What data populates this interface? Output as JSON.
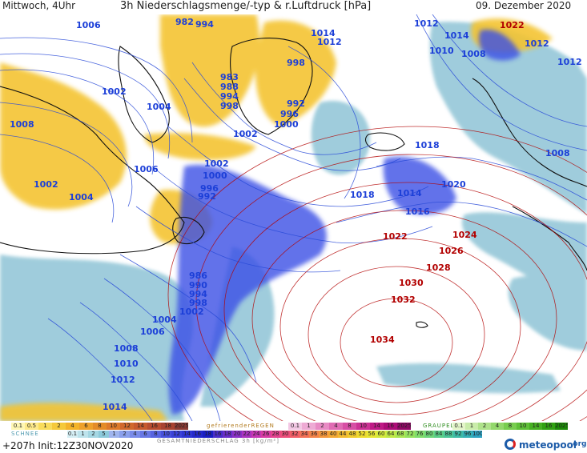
{
  "header": {
    "left": "Mittwoch, 4Uhr",
    "center": "3h Niederschlagsmenge/-typ & r.Luftdruck [hPa]",
    "right": "09. Dezember 2020"
  },
  "map": {
    "isobars_blue": [
      {
        "t": "1006"
      },
      {
        "t": "1012"
      },
      {
        "t": "1022"
      },
      {
        "t": "1018"
      },
      {
        "t": "1016"
      },
      {
        "t": "1012"
      },
      {
        "t": "982"
      },
      {
        "t": "994"
      },
      {
        "t": "1014"
      },
      {
        "t": "1012"
      },
      {
        "t": "1014"
      },
      {
        "t": "1010"
      },
      {
        "t": "1008"
      },
      {
        "t": "1012"
      },
      {
        "t": "998"
      },
      {
        "t": "983"
      },
      {
        "t": "988"
      },
      {
        "t": "994"
      },
      {
        "t": "998"
      },
      {
        "t": "992"
      },
      {
        "t": "996"
      },
      {
        "t": "1000"
      },
      {
        "t": "1002"
      },
      {
        "t": "1004"
      },
      {
        "t": "1008"
      },
      {
        "t": "1002"
      },
      {
        "t": "1018"
      },
      {
        "t": "1008"
      },
      {
        "t": "1006"
      },
      {
        "t": "1002"
      },
      {
        "t": "1000"
      },
      {
        "t": "996"
      },
      {
        "t": "992"
      },
      {
        "t": "1002"
      },
      {
        "t": "1004"
      },
      {
        "t": "1018"
      },
      {
        "t": "1014"
      },
      {
        "t": "1020"
      },
      {
        "t": "1016"
      },
      {
        "t": "986"
      },
      {
        "t": "990"
      },
      {
        "t": "994"
      },
      {
        "t": "998"
      },
      {
        "t": "1002"
      },
      {
        "t": "1004"
      },
      {
        "t": "1006"
      },
      {
        "t": "1008"
      },
      {
        "t": "1010"
      },
      {
        "t": "1012"
      },
      {
        "t": "1014"
      }
    ],
    "isobars_red": [
      {
        "t": "1022"
      },
      {
        "t": "1024"
      },
      {
        "t": "1026"
      },
      {
        "t": "1028"
      },
      {
        "t": "1030"
      },
      {
        "t": "1032"
      },
      {
        "t": "1034"
      }
    ],
    "colors": {
      "rain": "#f4c430",
      "snow": "#8fc4d6",
      "heavy_snow": "#3b50e6",
      "isobar_low": "#1c3fd8",
      "isobar_high": "#b20000",
      "land": "#ffffff",
      "coast": "#111111"
    }
  },
  "legend": {
    "rain_title": "REGEN",
    "rain_values": [
      "0.1",
      "0.5",
      "1",
      "2",
      "4",
      "6",
      "8",
      "10",
      "12",
      "14",
      "16",
      "18",
      "2025+"
    ],
    "rain_colors": [
      "#fff7b3",
      "#fde98a",
      "#f9dc5c",
      "#f5c93a",
      "#f3b32a",
      "#eea12c",
      "#e48c28",
      "#dd7a2a",
      "#d1692d",
      "#c65a2e",
      "#b74d30",
      "#a84331",
      "#8a3a33"
    ],
    "freezing_title": "gefrierenderREGEN",
    "freezing_values": [
      "0.1",
      "1",
      "2",
      "4",
      "8",
      "10",
      "14",
      "16",
      "2025+"
    ],
    "freezing_colors": [
      "#f3c8e4",
      "#eeaad4",
      "#e88bc4",
      "#e06cb4",
      "#d74ea4",
      "#cc3294",
      "#bf1a86",
      "#ad0c77",
      "#920766"
    ],
    "graupel_title": "GRAUPEL",
    "graupel_values": [
      "0.1",
      "1",
      "2",
      "4",
      "8",
      "10",
      "14",
      "16",
      "2025+"
    ],
    "graupel_colors": [
      "#e3f5c9",
      "#c9ecaa",
      "#aee28a",
      "#93d86c",
      "#78cd4f",
      "#5fc038",
      "#47b123",
      "#31a112",
      "#1d8c07"
    ],
    "snow_title": "SCHNEE",
    "snow_values": [
      "0.1",
      "1",
      "2",
      "5",
      "1",
      "2",
      "4",
      "6",
      "8",
      "10",
      "12",
      "14",
      "16",
      "18"
    ],
    "snow_colors": [
      "#d5eef4",
      "#bde3ec",
      "#a5d7e3",
      "#8dcadb",
      "#9fb4ee",
      "#8aa0ec",
      "#7a8ce9",
      "#6878e5",
      "#5764e1",
      "#4751dd",
      "#3a42d8",
      "#2e35d3",
      "#2428cc",
      "#1a1ec4"
    ],
    "total_title": "GESAMTNIEDERSCHLAG 3h [kg/m²]",
    "total_values": [
      "16",
      "18",
      "20",
      "22",
      "24",
      "26",
      "28",
      "30",
      "32",
      "34",
      "36",
      "38",
      "40",
      "44",
      "48",
      "52",
      "56",
      "60",
      "64",
      "68",
      "72",
      "76",
      "80",
      "84",
      "88",
      "92",
      "96",
      "100"
    ],
    "total_colors": [
      "#4a2ec9",
      "#6a2fc9",
      "#8a30c6",
      "#aa33c0",
      "#c637b4",
      "#d83ba4",
      "#e54390",
      "#ee4f7c",
      "#f25f68",
      "#f37157",
      "#f3844a",
      "#f3973e",
      "#f3a935",
      "#f2bb31",
      "#f0cc2f",
      "#eedc30",
      "#e6e735",
      "#d3ea3e",
      "#bfe948",
      "#aae753",
      "#95e25f",
      "#80dd6c",
      "#6dd67a",
      "#5bcf89",
      "#4bc698",
      "#3ebba7",
      "#35b0b6",
      "#2fa3c3"
    ]
  },
  "footer": {
    "run": "+207h Init:12Z30NOV2020",
    "logo": "meteopool",
    "logo_tld": ".org"
  }
}
